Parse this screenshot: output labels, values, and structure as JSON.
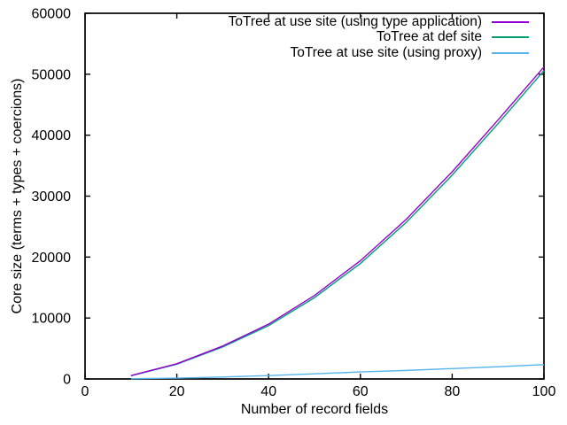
{
  "chart_data": {
    "type": "line",
    "title": "",
    "xlabel": "Number of record fields",
    "ylabel": "Core size (terms + types + coercions)",
    "xlim": [
      0,
      100
    ],
    "ylim": [
      0,
      60000
    ],
    "x_ticks": [
      0,
      20,
      40,
      60,
      80,
      100
    ],
    "y_ticks": [
      0,
      10000,
      20000,
      30000,
      40000,
      50000,
      60000
    ],
    "grid": false,
    "legend_position": "top-right-inside",
    "background_color": "#ffffff",
    "border_color": "#000000",
    "text_color": "#000000",
    "x": [
      10,
      20,
      30,
      40,
      50,
      60,
      70,
      80,
      90,
      100
    ],
    "series": [
      {
        "name": "ToTree at use site (using type application)",
        "color": "#9400d3",
        "values": [
          550,
          2500,
          5400,
          9000,
          13700,
          19400,
          26200,
          34000,
          42500,
          51200
        ]
      },
      {
        "name": "ToTree at def site",
        "color": "#009e73",
        "values": [
          520,
          2420,
          5250,
          8750,
          13350,
          18950,
          25700,
          33450,
          41900,
          50600
        ]
      },
      {
        "name": "ToTree at use site (using proxy)",
        "color": "#56b4e9",
        "values": [
          50,
          130,
          320,
          550,
          850,
          1150,
          1400,
          1700,
          2000,
          2350
        ]
      }
    ]
  }
}
